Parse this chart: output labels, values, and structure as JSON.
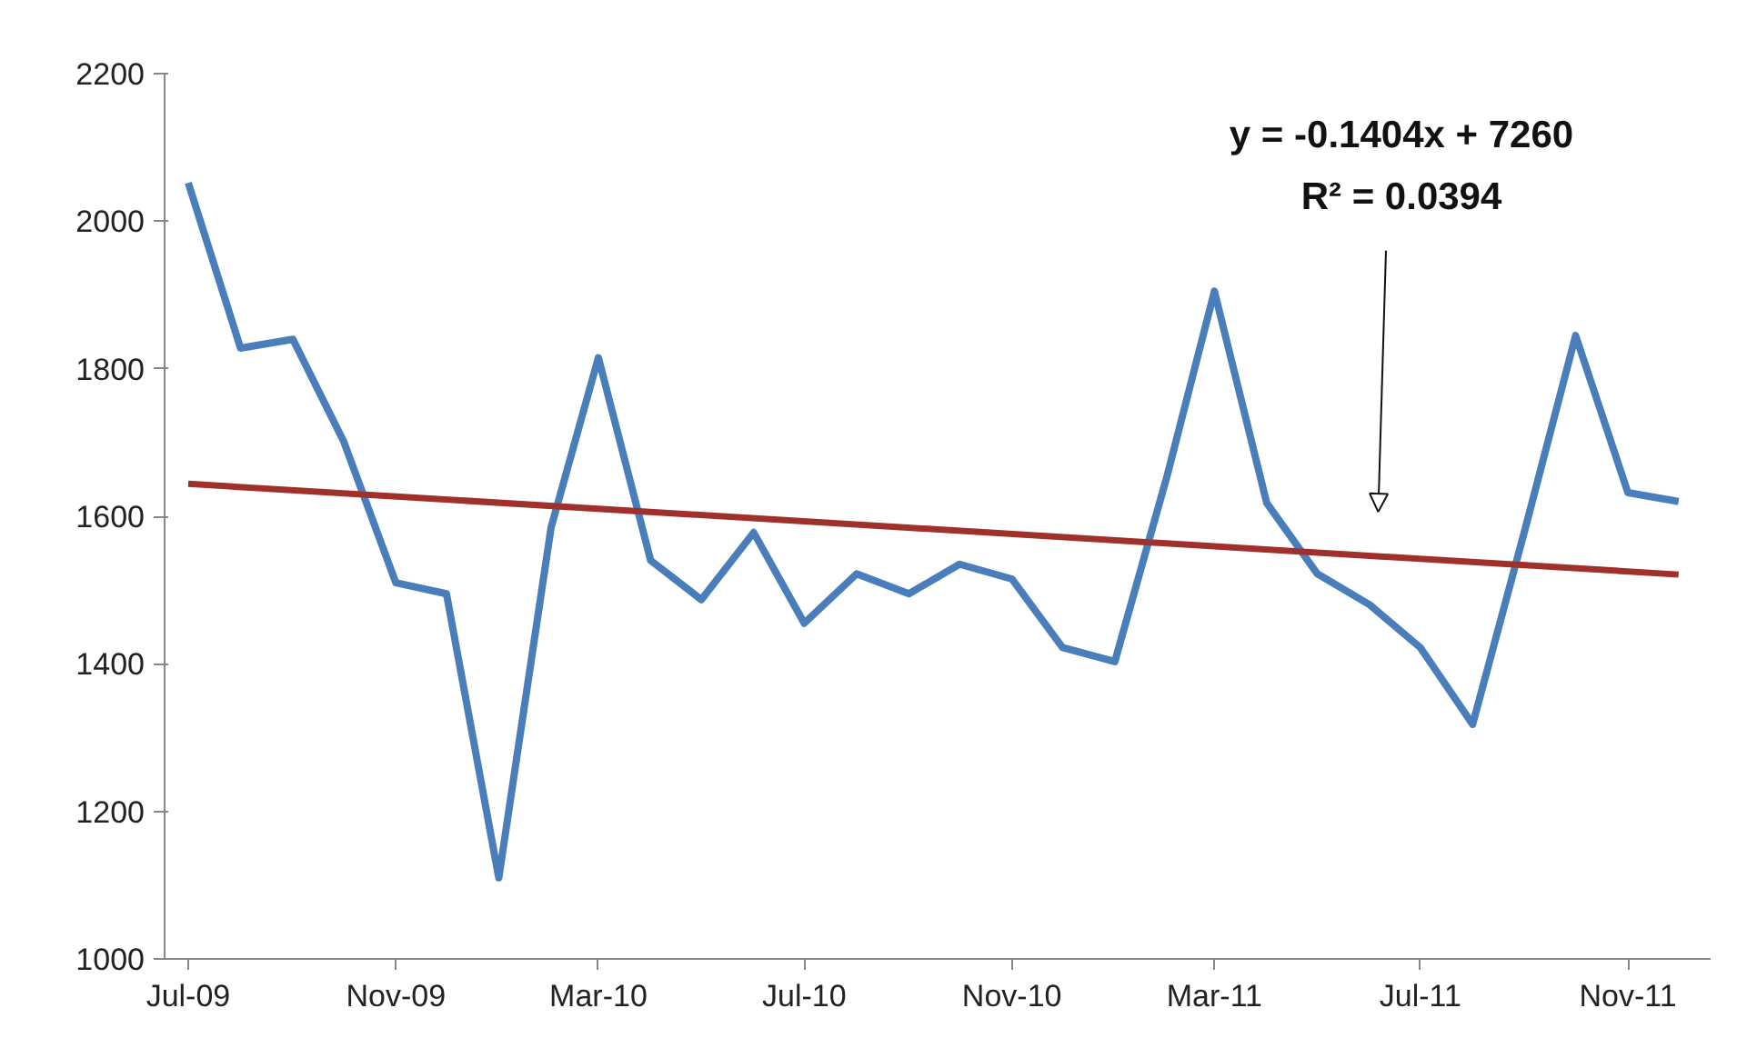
{
  "chart_data": {
    "type": "line",
    "x": [
      "2009-07",
      "2009-08",
      "2009-09",
      "2009-10",
      "2009-11",
      "2009-12",
      "2010-01",
      "2010-02",
      "2010-03",
      "2010-04",
      "2010-05",
      "2010-06",
      "2010-07",
      "2010-08",
      "2010-09",
      "2010-10",
      "2010-11",
      "2010-12",
      "2011-01",
      "2011-02",
      "2011-03",
      "2011-04",
      "2011-05",
      "2011-06",
      "2011-07",
      "2011-08",
      "2011-09",
      "2011-10",
      "2011-11",
      "2011-12"
    ],
    "series": [
      {
        "color": "#4a7ebb",
        "values": [
          2052,
          1828,
          1840,
          1702,
          1510,
          1495,
          1110,
          1585,
          1815,
          1540,
          1487,
          1578,
          1455,
          1522,
          1495,
          1535,
          1515,
          1422,
          1403,
          1655,
          1905,
          1618,
          1522,
          1480,
          1422,
          1318,
          1582,
          1845,
          1632,
          1620
        ]
      },
      {
        "type": "line",
        "color": "#a0302c",
        "x": [
          "2009-07",
          "2011-12"
        ],
        "values": [
          1644,
          1521
        ]
      }
    ],
    "annotations": [
      "y = -0.1404x + 7260",
      "R² = 0.0394"
    ],
    "xlim": [
      "2009-06-17",
      "2011-12-20"
    ],
    "xticks": [
      {
        "value": "2009-07",
        "label": "Jul-09"
      },
      {
        "value": "2009-11",
        "label": "Nov-09"
      },
      {
        "value": "2010-03",
        "label": "Mar-10"
      },
      {
        "value": "2010-07",
        "label": "Jul-10"
      },
      {
        "value": "2010-11",
        "label": "Nov-10"
      },
      {
        "value": "2011-03",
        "label": "Mar-11"
      },
      {
        "value": "2011-07",
        "label": "Jul-11"
      },
      {
        "value": "2011-11",
        "label": "Nov-11"
      }
    ],
    "ylim": [
      1000,
      2200
    ],
    "yticks": [
      1000,
      1200,
      1400,
      1600,
      1800,
      2000,
      2200
    ],
    "grid": false,
    "marker": "none",
    "line_style": "solid"
  }
}
